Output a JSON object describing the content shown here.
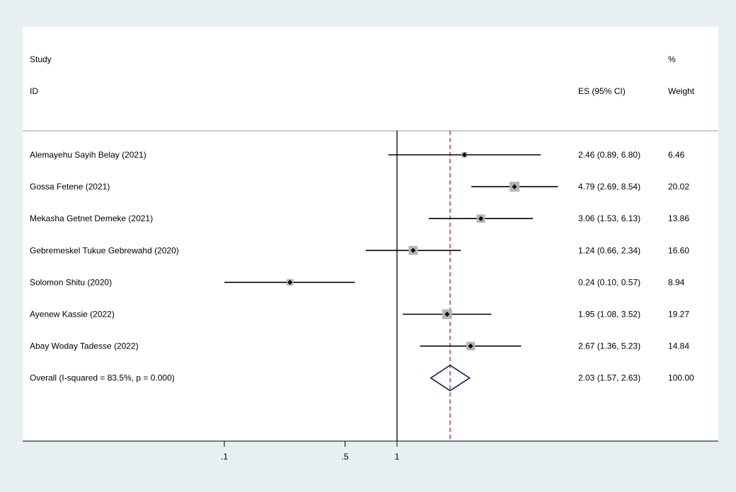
{
  "header": {
    "study_line1": "Study",
    "study_line2": "ID",
    "es_header": "ES (95% CI)",
    "weight_line1": "%",
    "weight_line2": "Weight"
  },
  "chart_data": {
    "type": "forest",
    "x_scale": "log",
    "xticks": [
      {
        "value": 0.1,
        "label": ".1"
      },
      {
        "value": 0.5,
        "label": ".5"
      },
      {
        "value": 1,
        "label": "1"
      }
    ],
    "null_line": 1,
    "overall_line": 2.03,
    "studies": [
      {
        "label": "Alemayehu Sayih Belay (2021)",
        "es": 2.46,
        "lo": 0.89,
        "hi": 6.8,
        "es_text": "2.46 (0.89, 6.80)",
        "weight": 6.46,
        "weight_text": "6.46"
      },
      {
        "label": "Gossa Fetene (2021)",
        "es": 4.79,
        "lo": 2.69,
        "hi": 8.54,
        "es_text": "4.79 (2.69, 8.54)",
        "weight": 20.02,
        "weight_text": "20.02"
      },
      {
        "label": "Mekasha Getnet Demeke (2021)",
        "es": 3.06,
        "lo": 1.53,
        "hi": 6.13,
        "es_text": "3.06 (1.53, 6.13)",
        "weight": 13.86,
        "weight_text": "13.86"
      },
      {
        "label": "Gebremeskel Tukue Gebrewahd (2020)",
        "es": 1.24,
        "lo": 0.66,
        "hi": 2.34,
        "es_text": "1.24 (0.66, 2.34)",
        "weight": 16.6,
        "weight_text": "16.60"
      },
      {
        "label": "Solomon Shitu (2020)",
        "es": 0.24,
        "lo": 0.1,
        "hi": 0.57,
        "es_text": "0.24 (0.10, 0.57)",
        "weight": 8.94,
        "weight_text": "8.94"
      },
      {
        "label": "Ayenew Kassie (2022)",
        "es": 1.95,
        "lo": 1.08,
        "hi": 3.52,
        "es_text": "1.95 (1.08, 3.52)",
        "weight": 19.27,
        "weight_text": "19.27"
      },
      {
        "label": "Abay Woday Tadesse (2022)",
        "es": 2.67,
        "lo": 1.36,
        "hi": 5.23,
        "es_text": "2.67 (1.36, 5.23)",
        "weight": 14.84,
        "weight_text": "14.84"
      }
    ],
    "overall": {
      "label": "Overall  (I-squared = 83.5%, p = 0.000)",
      "es": 2.03,
      "lo": 1.57,
      "hi": 2.63,
      "es_text": "2.03 (1.57, 2.63)",
      "weight_text": "100.00"
    },
    "colors": {
      "background": "#e8eff2",
      "panel": "#ffffff",
      "ci_line": "#000000",
      "weight_box": "#b4b4b4",
      "point": "#000000",
      "overall_line": "#8b1a2b",
      "diamond": "#1a1a5e"
    }
  }
}
